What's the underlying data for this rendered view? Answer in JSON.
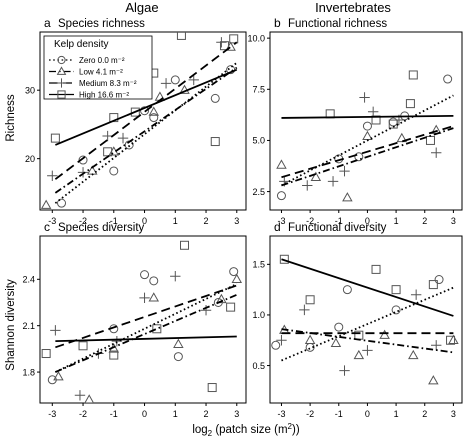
{
  "figure": {
    "col_titles": [
      "Algae",
      "Invertebrates"
    ],
    "row_titles": [
      "Richness",
      "Shannon diversity"
    ],
    "x_title": "log₂ (patch size (m²))"
  },
  "legend": {
    "title": "Kelp density",
    "entries": [
      {
        "label": "Zero 0.0 m⁻²",
        "marker": "circle",
        "dash": "1.6,2.6"
      },
      {
        "label": "Low 4.1 m⁻²",
        "marker": "triangle",
        "dash": "7,3,1.6,3"
      },
      {
        "label": "Medium 8.3 m⁻²",
        "marker": "plus",
        "dash": "9,5"
      },
      {
        "label": "High 16.6 m⁻²",
        "marker": "square",
        "dash": ""
      }
    ]
  },
  "chart_data": [
    {
      "type": "scatter",
      "letter": "a",
      "title": "Species richness",
      "xlabel": "log₂ (patch size (m²))",
      "ylabel": "Richness",
      "xlim": [
        -3.4,
        3.3
      ],
      "ylim": [
        12.5,
        38.5
      ],
      "xticks": [
        -3,
        -2,
        -1,
        0,
        1,
        2,
        3
      ],
      "yticks": [
        20,
        30
      ],
      "series": [
        {
          "name": "Zero 0.0 m⁻²",
          "marker": "circle",
          "dash": "1.6,2.6",
          "x": [
            -2.7,
            -2.0,
            -1.0,
            -0.5,
            0.0,
            0.3,
            1.0,
            2.3,
            2.8
          ],
          "y": [
            13.5,
            19.8,
            18.2,
            22.0,
            27.0,
            26.0,
            31.5,
            28.8,
            33.0
          ],
          "line": [
            [
              -2.9,
              13.5
            ],
            [
              3.0,
              34.0
            ]
          ]
        },
        {
          "name": "Low 4.1 m⁻²",
          "marker": "triangle",
          "dash": "7,3,1.6,3",
          "x": [
            -3.2,
            -1.7,
            -1.0,
            0.3,
            0.5,
            1.3,
            2.8
          ],
          "y": [
            13.2,
            18.2,
            21.0,
            26.8,
            29.0,
            30.0,
            36.3
          ],
          "line": [
            [
              -2.9,
              15.0
            ],
            [
              3.0,
              33.3
            ]
          ]
        },
        {
          "name": "Medium 8.3 m⁻²",
          "marker": "plus",
          "dash": "9,5",
          "x": [
            -3.0,
            -2.0,
            -1.2,
            -0.7,
            0.0,
            0.7,
            1.6,
            2.5
          ],
          "y": [
            17.5,
            18.0,
            23.3,
            23.0,
            34.0,
            31.0,
            31.5,
            37.0
          ],
          "line": [
            [
              -2.9,
              17.0
            ],
            [
              3.0,
              37.0
            ]
          ]
        },
        {
          "name": "High 16.6 m⁻²",
          "marker": "square",
          "dash": "",
          "x": [
            -2.9,
            -1.2,
            -1.0,
            -0.3,
            0.3,
            1.2,
            2.3,
            2.6,
            2.9
          ],
          "y": [
            23.0,
            21.0,
            26.0,
            26.8,
            32.5,
            38.0,
            22.5,
            36.5,
            37.5
          ],
          "line": [
            [
              -2.9,
              22.0
            ],
            [
              3.0,
              33.0
            ]
          ]
        }
      ]
    },
    {
      "type": "scatter",
      "letter": "b",
      "title": "Functional richness",
      "xlabel": "log₂ (patch size (m²))",
      "ylabel": "",
      "xlim": [
        -3.4,
        3.3
      ],
      "ylim": [
        1.6,
        10.3
      ],
      "xticks": [
        -3,
        -2,
        -1,
        0,
        1,
        2,
        3
      ],
      "yticks": [
        2.5,
        5.0,
        7.5,
        10.0
      ],
      "ytick_labels": [
        "2.5",
        "5.0",
        "7.5",
        "10.0"
      ],
      "series": [
        {
          "name": "Zero 0.0 m⁻²",
          "marker": "circle",
          "dash": "1.6,2.6",
          "x": [
            -3.0,
            -1.0,
            -0.3,
            0.0,
            0.9,
            1.3,
            2.8
          ],
          "y": [
            2.3,
            4.1,
            4.2,
            5.7,
            5.9,
            6.2,
            8.0
          ],
          "line": [
            [
              -3.0,
              2.8
            ],
            [
              3.0,
              7.2
            ]
          ]
        },
        {
          "name": "Low 4.1 m⁻²",
          "marker": "triangle",
          "dash": "7,3,1.6,3",
          "x": [
            -3.0,
            -1.8,
            -0.7,
            0.0,
            1.2,
            2.4
          ],
          "y": [
            3.8,
            3.2,
            2.2,
            5.2,
            5.1,
            5.5
          ],
          "line": [
            [
              -3.0,
              2.8
            ],
            [
              3.0,
              5.6
            ]
          ]
        },
        {
          "name": "Medium 8.3 m⁻²",
          "marker": "plus",
          "dash": "9,5",
          "x": [
            -2.9,
            -2.1,
            -1.2,
            -0.8,
            -0.1,
            0.2,
            1.1,
            2.4
          ],
          "y": [
            3.0,
            2.8,
            3.0,
            3.5,
            7.1,
            6.4,
            6.0,
            4.4
          ],
          "line": [
            [
              -3.0,
              3.2
            ],
            [
              3.0,
              5.7
            ]
          ]
        },
        {
          "name": "High 16.6 m⁻²",
          "marker": "square",
          "dash": "",
          "x": [
            -1.3,
            0.3,
            0.9,
            1.5,
            1.6,
            2.2
          ],
          "y": [
            6.3,
            6.0,
            5.8,
            6.8,
            8.2,
            5.0
          ],
          "line": [
            [
              -3.0,
              6.1
            ],
            [
              3.0,
              6.2
            ]
          ]
        }
      ]
    },
    {
      "type": "scatter",
      "letter": "c",
      "title": "Species diversity",
      "xlabel": "log₂ (patch size (m²))",
      "ylabel": "Shannon diversity",
      "xlim": [
        -3.4,
        3.3
      ],
      "ylim": [
        1.6,
        2.68
      ],
      "xticks": [
        -3,
        -2,
        -1,
        0,
        1,
        2,
        3
      ],
      "yticks": [
        1.8,
        2.1,
        2.4
      ],
      "ytick_labels": [
        "1.8",
        "2.1",
        "2.4"
      ],
      "series": [
        {
          "name": "Zero 0.0 m⁻²",
          "marker": "circle",
          "dash": "1.6,2.6",
          "x": [
            -3.0,
            -1.0,
            0.0,
            0.3,
            1.1,
            2.4,
            2.9
          ],
          "y": [
            1.75,
            2.08,
            2.43,
            2.39,
            1.9,
            2.25,
            2.45
          ],
          "line": [
            [
              -2.9,
              1.8
            ],
            [
              3.0,
              2.37
            ]
          ]
        },
        {
          "name": "Low 4.1 m⁻²",
          "marker": "triangle",
          "dash": "7,3,1.6,3",
          "x": [
            -2.8,
            -1.8,
            -1.0,
            0.3,
            1.1,
            2.5,
            3.0
          ],
          "y": [
            1.77,
            1.62,
            1.95,
            2.28,
            1.98,
            2.27,
            2.4
          ],
          "line": [
            [
              -2.9,
              1.8
            ],
            [
              3.0,
              2.3
            ]
          ]
        },
        {
          "name": "Medium 8.3 m⁻²",
          "marker": "plus",
          "dash": "9,5",
          "x": [
            -2.9,
            -2.1,
            -1.5,
            -0.9,
            0.0,
            1.0,
            2.0
          ],
          "y": [
            2.07,
            1.65,
            1.92,
            2.0,
            2.28,
            2.42,
            2.2
          ],
          "line": [
            [
              -2.9,
              1.96
            ],
            [
              3.0,
              2.36
            ]
          ]
        },
        {
          "name": "High 16.6 m⁻²",
          "marker": "square",
          "dash": "",
          "x": [
            -3.2,
            -2.0,
            -1.0,
            0.4,
            1.3,
            2.2,
            2.8
          ],
          "y": [
            1.92,
            1.97,
            1.91,
            2.08,
            2.62,
            1.7,
            2.22
          ],
          "line": [
            [
              -2.9,
              2.0
            ],
            [
              3.0,
              2.03
            ]
          ]
        }
      ]
    },
    {
      "type": "scatter",
      "letter": "d",
      "title": "Functional diversity",
      "xlabel": "log₂ (patch size (m²))",
      "ylabel": "",
      "xlim": [
        -3.4,
        3.3
      ],
      "ylim": [
        0.13,
        1.78
      ],
      "xticks": [
        -3,
        -2,
        -1,
        0,
        1,
        2,
        3
      ],
      "yticks": [
        0.5,
        1.0,
        1.5
      ],
      "ytick_labels": [
        "0.5",
        "1.0",
        "1.5"
      ],
      "series": [
        {
          "name": "Zero 0.0 m⁻²",
          "marker": "circle",
          "dash": "1.6,2.6",
          "x": [
            -3.2,
            -2.0,
            -1.0,
            -0.7,
            1.0,
            2.5
          ],
          "y": [
            0.7,
            0.68,
            0.88,
            1.25,
            1.05,
            1.35
          ],
          "line": [
            [
              -3.0,
              0.55
            ],
            [
              3.0,
              1.27
            ]
          ]
        },
        {
          "name": "Low 4.1 m⁻²",
          "marker": "triangle",
          "dash": "7,3,1.6,3",
          "x": [
            -2.9,
            -2.0,
            -1.1,
            -0.3,
            0.6,
            1.6,
            2.3,
            3.0
          ],
          "y": [
            0.85,
            0.75,
            0.72,
            0.6,
            0.8,
            0.6,
            0.35,
            0.75
          ],
          "line": [
            [
              -3.0,
              0.86
            ],
            [
              3.0,
              0.63
            ]
          ]
        },
        {
          "name": "Medium 8.3 m⁻²",
          "marker": "plus",
          "dash": "9,5",
          "x": [
            -3.0,
            -2.2,
            -0.8,
            0.0,
            1.7,
            2.4
          ],
          "y": [
            0.75,
            1.05,
            0.45,
            0.65,
            1.2,
            0.7
          ],
          "line": [
            [
              -3.0,
              0.82
            ],
            [
              3.0,
              0.82
            ]
          ]
        },
        {
          "name": "High 16.6 m⁻²",
          "marker": "square",
          "dash": "",
          "x": [
            -2.9,
            -2.0,
            -0.3,
            0.3,
            1.0,
            2.3,
            2.9
          ],
          "y": [
            1.55,
            1.15,
            0.8,
            1.45,
            1.25,
            1.3,
            0.75
          ],
          "line": [
            [
              -3.0,
              1.55
            ],
            [
              3.0,
              0.99
            ]
          ]
        }
      ]
    }
  ]
}
